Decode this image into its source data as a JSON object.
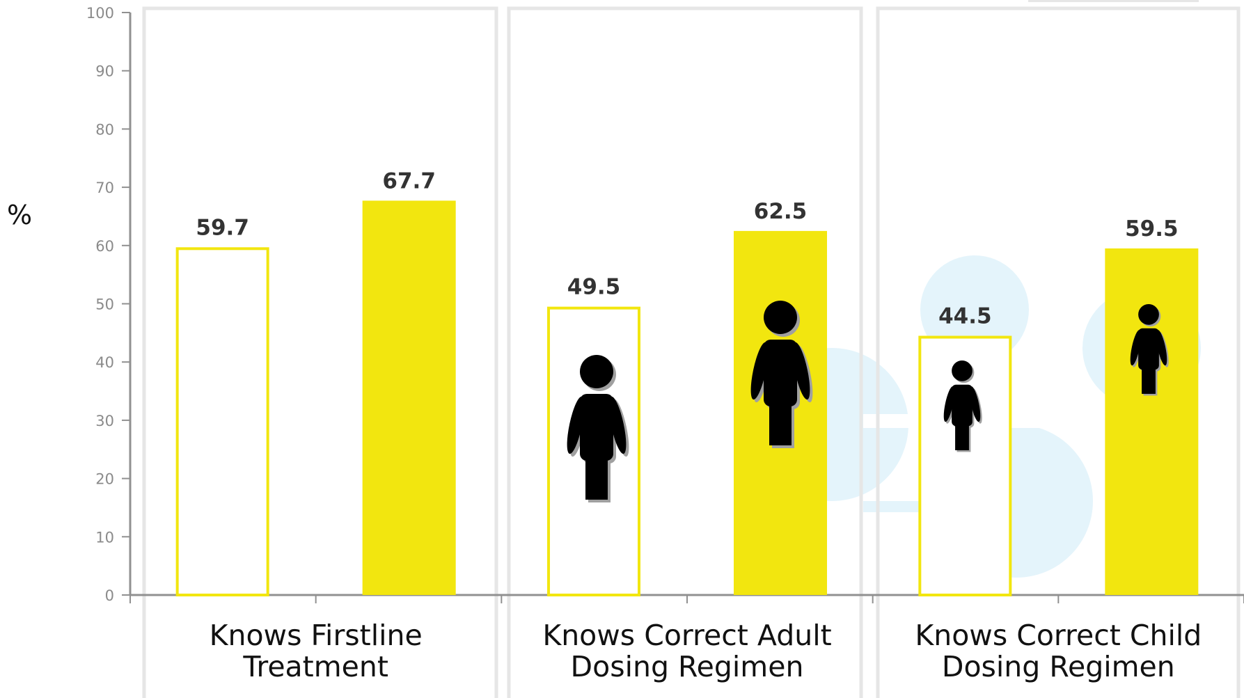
{
  "colors": {
    "accent": "#f2e60f",
    "panel_border": "#e6e6e6",
    "axis": "#909090",
    "figure": "#000000",
    "watermark": "#e4f4fb"
  },
  "chart_data": {
    "type": "bar",
    "ylabel": "%",
    "xlabel": "",
    "ylim": [
      0,
      100
    ],
    "yticks": [
      0,
      10,
      20,
      30,
      40,
      50,
      60,
      70,
      80,
      90,
      100
    ],
    "grid": false,
    "categories": [
      [
        "Knows Firstline",
        "Treatment"
      ],
      [
        "Knows Correct Adult",
        "Dosing Regimen"
      ],
      [
        "Knows Correct Child",
        "Dosing Regimen"
      ]
    ],
    "series": [
      {
        "style": "outline",
        "color": "#f2e60f",
        "values": [
          59.7,
          49.5,
          44.5
        ]
      },
      {
        "style": "filled",
        "color": "#f2e60f",
        "values": [
          67.7,
          62.5,
          59.5
        ]
      }
    ],
    "data_labels": [
      [
        "59.7",
        "67.7"
      ],
      [
        "49.5",
        "62.5"
      ],
      [
        "44.5",
        "59.5"
      ]
    ],
    "icons": [
      [
        null,
        null
      ],
      [
        "adult-figure-icon",
        "adult-figure-icon"
      ],
      [
        "child-figure-icon",
        "child-figure-icon"
      ]
    ]
  }
}
